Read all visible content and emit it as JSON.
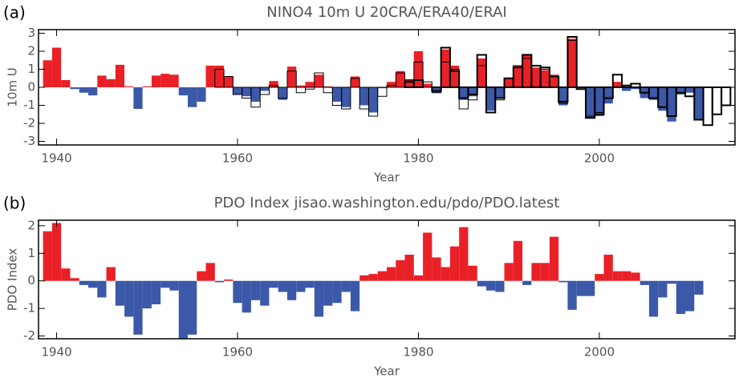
{
  "chart_data": [
    {
      "type": "bar",
      "panel_label": "(a)",
      "title": "NINO4 10m U 20CRA/ERA40/ERAI",
      "ylabel": "10m U",
      "xlabel": "Year",
      "pos_color": "#ea2027",
      "neg_color": "#3c58a8",
      "xlim": [
        1938,
        2015
      ],
      "xticks": [
        1940,
        1960,
        1980,
        2000
      ],
      "ylim": [
        -3.2,
        3.2
      ],
      "yticks": [
        -3,
        -2,
        -1,
        0,
        1,
        2,
        3
      ],
      "x": [
        1939,
        1940,
        1941,
        1942,
        1943,
        1944,
        1945,
        1946,
        1947,
        1948,
        1949,
        1950,
        1951,
        1952,
        1953,
        1954,
        1955,
        1956,
        1957,
        1958,
        1959,
        1960,
        1961,
        1962,
        1963,
        1964,
        1965,
        1966,
        1967,
        1968,
        1969,
        1970,
        1971,
        1972,
        1973,
        1974,
        1975,
        1976,
        1977,
        1978,
        1979,
        1980,
        1981,
        1982,
        1983,
        1984,
        1985,
        1986,
        1987,
        1988,
        1989,
        1990,
        1991,
        1992,
        1993,
        1994,
        1995,
        1996,
        1997,
        1998,
        1999,
        2000,
        2001,
        2002,
        2003,
        2004,
        2005,
        2006,
        2007,
        2008,
        2009,
        2010,
        2011,
        2012,
        2013,
        2014
      ],
      "series": [
        {
          "style": "bar",
          "values": [
            1.5,
            2.2,
            0.4,
            -0.1,
            -0.3,
            -0.45,
            0.65,
            0.45,
            1.25,
            0.05,
            -1.2,
            0.05,
            0.65,
            0.75,
            0.7,
            -0.45,
            -1.1,
            -0.8,
            1.2,
            1.2,
            0.6,
            -0.4,
            -0.5,
            -0.8,
            -0.2,
            0.35,
            -0.7,
            1.15,
            0.1,
            0.3,
            0.7,
            0.05,
            -0.8,
            -1.1,
            0.6,
            -1.0,
            -1.4,
            -0.05,
            0.3,
            0.9,
            0.45,
            2.0,
            0.2,
            -0.3,
            2.1,
            1.2,
            -0.7,
            -0.5,
            1.6,
            -1.3,
            -0.6,
            0.5,
            1.2,
            1.85,
            1.1,
            0.95,
            0.7,
            -1.0,
            2.7,
            -0.05,
            -1.7,
            -1.6,
            -0.9,
            0.3,
            -0.2,
            -0.1,
            -0.6,
            -0.7,
            -1.3,
            -1.9,
            -0.4,
            -0.3,
            -1.8,
            null,
            null,
            null
          ]
        },
        {
          "style": "outline",
          "color": "#000000",
          "width": 1,
          "values": [
            null,
            null,
            null,
            null,
            null,
            null,
            null,
            null,
            null,
            null,
            null,
            null,
            null,
            null,
            null,
            null,
            null,
            null,
            null,
            1.0,
            0.6,
            -0.4,
            -0.6,
            -1.1,
            -0.4,
            0.1,
            -0.6,
            0.9,
            -0.3,
            -0.1,
            0.8,
            -0.3,
            -1.0,
            -1.2,
            0.5,
            -1.2,
            -1.6,
            -0.5,
            0.1,
            0.8,
            0.4,
            1.4,
            0.3,
            -0.3,
            1.4,
            1.0,
            -1.2,
            -0.7,
            1.2,
            -1.4,
            -0.7,
            0.5,
            1.2,
            1.6,
            1.2,
            1.0,
            0.6,
            -0.9,
            2.6,
            0.0,
            -1.6,
            -1.4,
            -0.6,
            null,
            null,
            null,
            null,
            null,
            null,
            null,
            null,
            null,
            null,
            null,
            null,
            null
          ]
        },
        {
          "style": "outline",
          "color": "#000000",
          "width": 2,
          "values": [
            null,
            null,
            null,
            null,
            null,
            null,
            null,
            null,
            null,
            null,
            null,
            null,
            null,
            null,
            null,
            null,
            null,
            null,
            null,
            null,
            null,
            null,
            null,
            null,
            null,
            null,
            null,
            null,
            null,
            null,
            null,
            null,
            null,
            null,
            null,
            null,
            null,
            null,
            null,
            null,
            0.3,
            0.4,
            0.0,
            -0.2,
            2.2,
            0.9,
            -0.6,
            -0.4,
            1.8,
            -1.4,
            -0.6,
            0.5,
            1.1,
            1.8,
            1.2,
            1.1,
            0.6,
            -0.8,
            2.8,
            -0.1,
            -1.7,
            -1.5,
            -0.6,
            0.7,
            0.1,
            0.2,
            -0.3,
            -0.6,
            -1.1,
            -1.6,
            -0.3,
            -0.5,
            -1.8,
            -2.1,
            -1.5,
            -1.0
          ]
        }
      ]
    },
    {
      "type": "bar",
      "panel_label": "(b)",
      "title": "PDO Index jisao.washington.edu/pdo/PDO.latest",
      "ylabel": "PDO Index",
      "xlabel": "Year",
      "pos_color": "#ea2027",
      "neg_color": "#3c58a8",
      "xlim": [
        1938,
        2015
      ],
      "xticks": [
        1940,
        1960,
        1980,
        2000
      ],
      "ylim": [
        -2.1,
        2.2
      ],
      "yticks": [
        -2,
        -1,
        0,
        1,
        2
      ],
      "x": [
        1939,
        1940,
        1941,
        1942,
        1943,
        1944,
        1945,
        1946,
        1947,
        1948,
        1949,
        1950,
        1951,
        1952,
        1953,
        1954,
        1955,
        1956,
        1957,
        1958,
        1959,
        1960,
        1961,
        1962,
        1963,
        1964,
        1965,
        1966,
        1967,
        1968,
        1969,
        1970,
        1971,
        1972,
        1973,
        1974,
        1975,
        1976,
        1977,
        1978,
        1979,
        1980,
        1981,
        1982,
        1983,
        1984,
        1985,
        1986,
        1987,
        1988,
        1989,
        1990,
        1991,
        1992,
        1993,
        1994,
        1995,
        1996,
        1997,
        1998,
        1999,
        2000,
        2001,
        2002,
        2003,
        2004,
        2005,
        2006,
        2007,
        2008,
        2009,
        2010,
        2011,
        2012,
        2013,
        2014
      ],
      "series": [
        {
          "style": "bar",
          "values": [
            1.8,
            2.1,
            0.45,
            0.1,
            -0.15,
            -0.25,
            -0.6,
            0.5,
            -0.9,
            -1.3,
            -1.95,
            -1.0,
            -0.85,
            -0.25,
            -0.35,
            -2.1,
            -1.95,
            0.35,
            0.65,
            -0.05,
            0.05,
            -0.8,
            -1.15,
            -0.7,
            -0.9,
            -0.25,
            -0.4,
            -0.7,
            -0.4,
            -0.25,
            -1.3,
            -0.9,
            -0.8,
            -0.4,
            -1.1,
            0.2,
            0.25,
            0.35,
            0.5,
            0.75,
            0.95,
            0.2,
            1.75,
            0.85,
            0.5,
            1.25,
            1.95,
            0.55,
            -0.2,
            -0.35,
            -0.4,
            0.65,
            1.45,
            -0.15,
            0.65,
            0.65,
            1.6,
            -0.05,
            -1.05,
            -0.55,
            -0.55,
            0.25,
            0.95,
            0.35,
            0.35,
            0.3,
            -0.15,
            -1.3,
            -0.6,
            -0.1,
            -1.2,
            -1.1,
            -0.5,
            null,
            null,
            null
          ]
        }
      ]
    }
  ]
}
